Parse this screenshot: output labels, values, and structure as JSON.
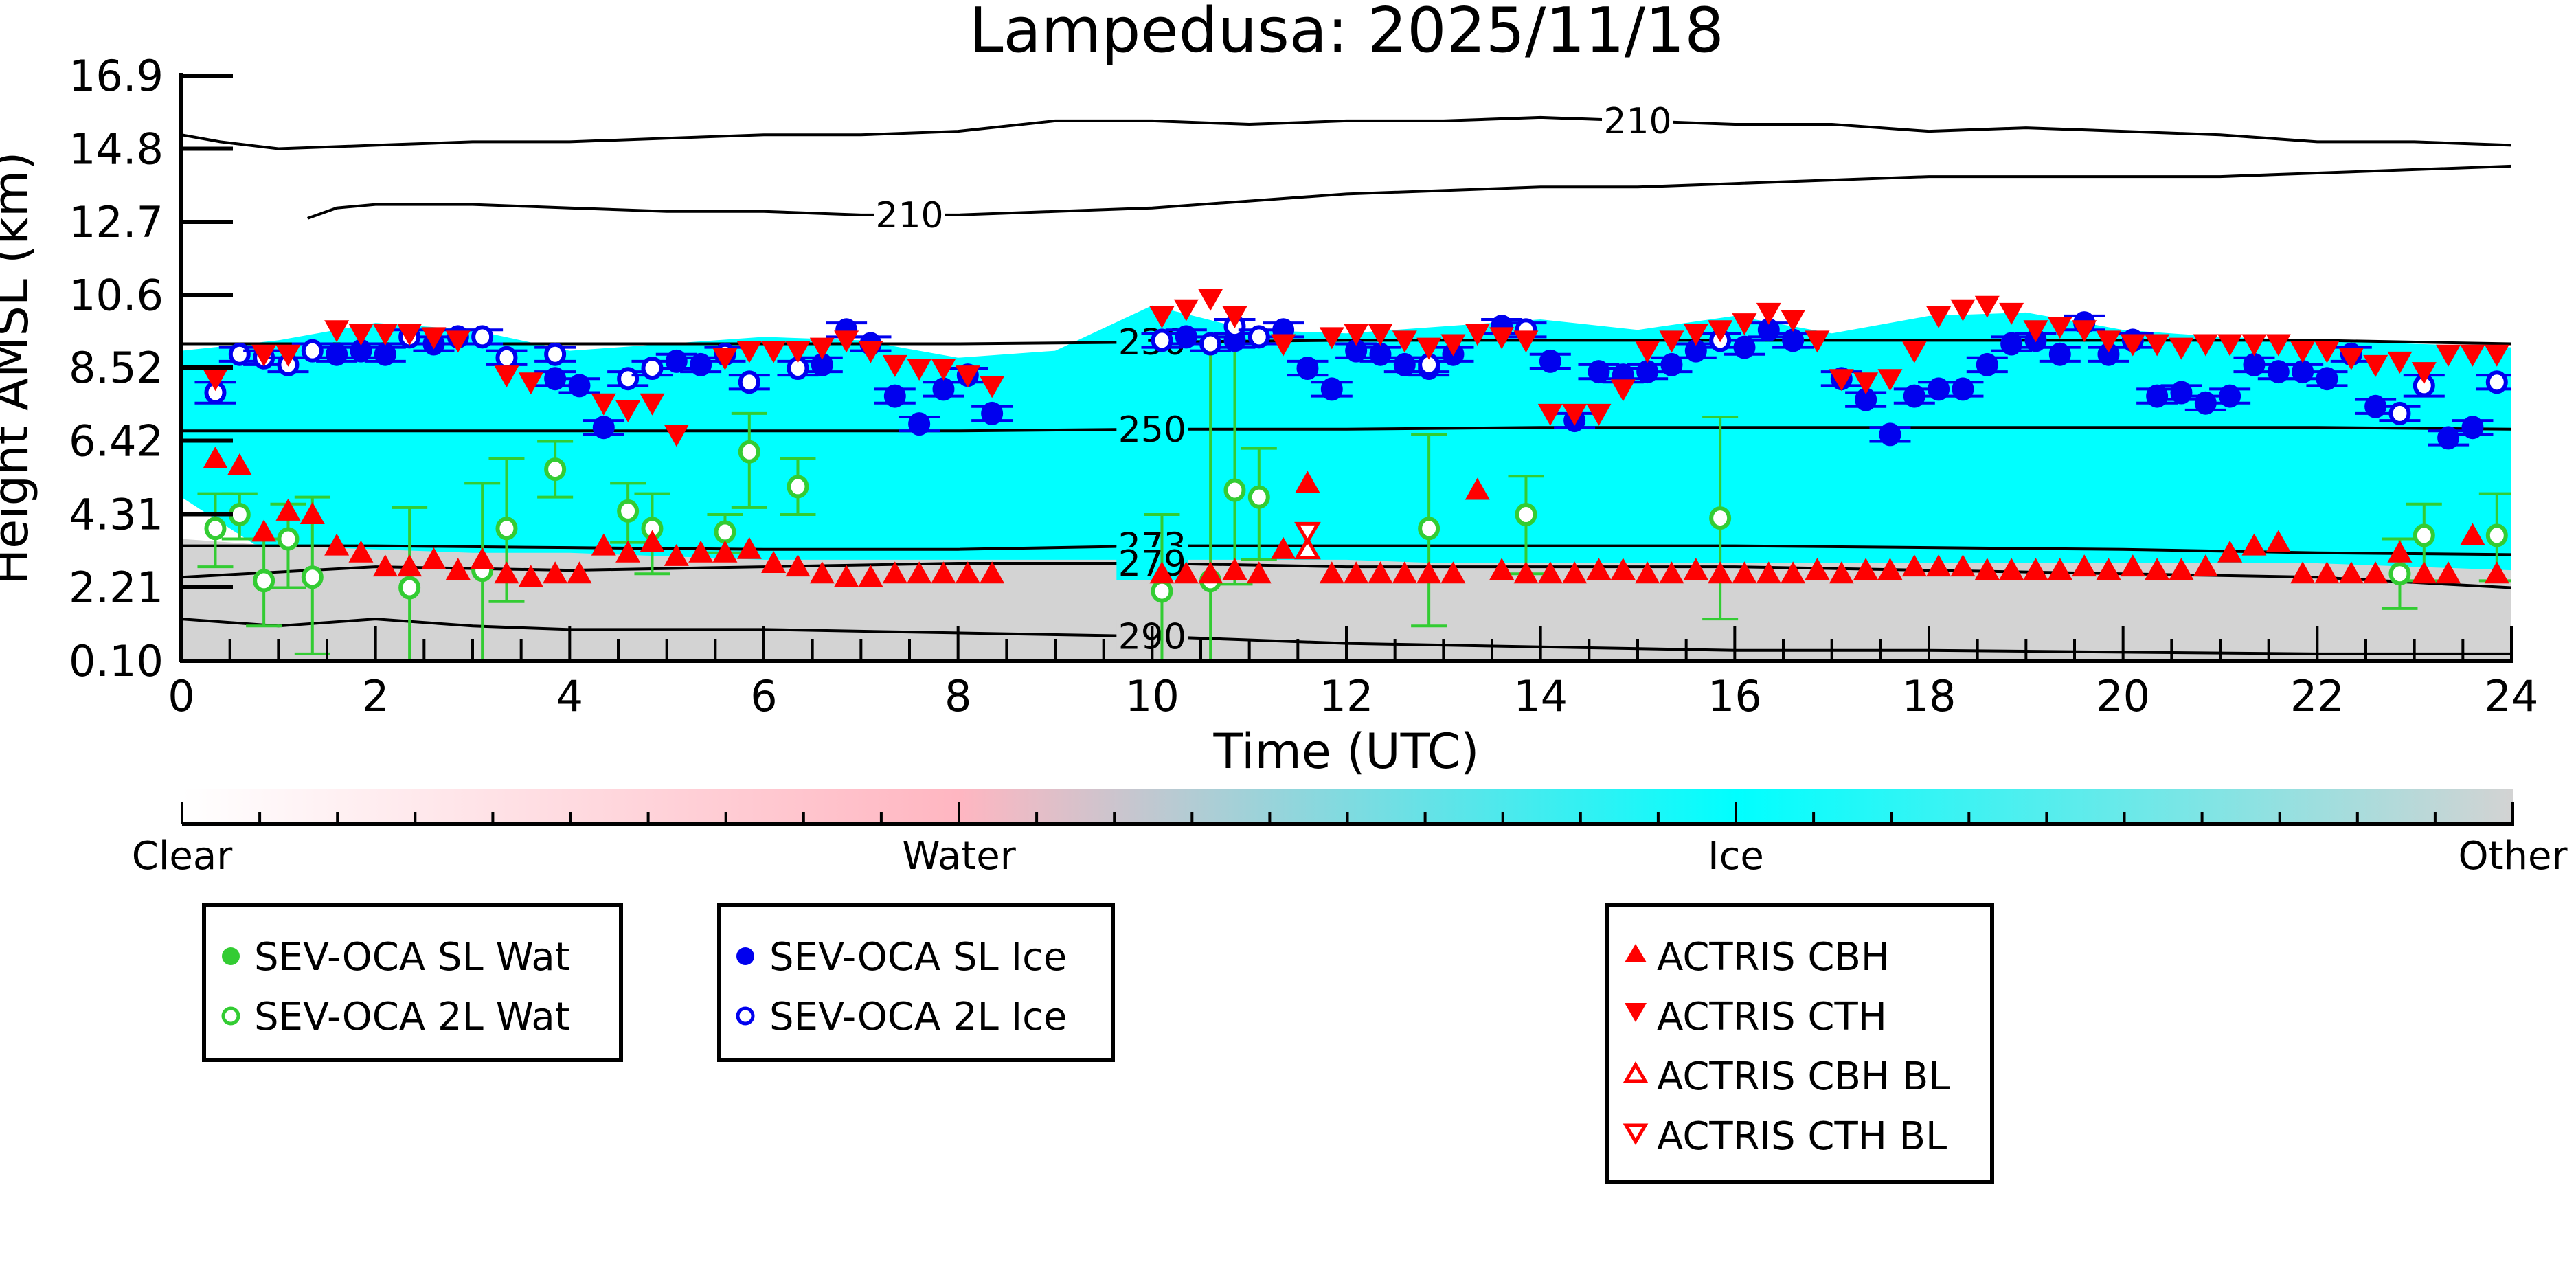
{
  "chart_data": {
    "type": "scatter",
    "title": "Lampedusa: 2025/11/18",
    "xlabel": "Time (UTC)",
    "ylabel": "Height AMSL (km)",
    "xlim": [
      0,
      24
    ],
    "ylim": [
      0.1,
      16.9
    ],
    "x_ticks": [
      0,
      2,
      4,
      6,
      8,
      10,
      12,
      14,
      16,
      18,
      20,
      22,
      24
    ],
    "x_tick_labels": [
      "0",
      "2",
      "4",
      "6",
      "8",
      "10",
      "12",
      "14",
      "16",
      "18",
      "20",
      "22",
      "24"
    ],
    "y_ticks": [
      0.1,
      2.21,
      4.31,
      6.42,
      8.52,
      10.6,
      12.7,
      14.8,
      16.9
    ],
    "y_tick_labels": [
      "0.10",
      "2.21",
      "4.31",
      "6.42",
      "8.52",
      "10.6",
      "12.7",
      "14.8",
      "16.9"
    ],
    "colors": {
      "clear": "#ffffff",
      "water": "#ffb6c1",
      "ice": "#00ffff",
      "other": "#d3d3d3",
      "sev_wat": "#33cc33",
      "sev_ice": "#0000ee",
      "actris": "#ff0000"
    },
    "background_layers": {
      "other_top_km": [
        3.6,
        3.4,
        3.3,
        3.2,
        3.2,
        3.1,
        3.0,
        3.0,
        3.0,
        3.0,
        3.0,
        3.0,
        3.0,
        2.9,
        2.9,
        2.9,
        2.9,
        2.9,
        2.9,
        2.9,
        2.9,
        2.9,
        2.9,
        2.8,
        2.7
      ],
      "ice_base_km": [
        4.8,
        3.0,
        2.6,
        2.6,
        2.5,
        2.5,
        2.5,
        2.5,
        2.5,
        2.6,
        2.6,
        2.6,
        2.6,
        2.6,
        2.6,
        2.6,
        2.6,
        2.6,
        2.6,
        2.6,
        2.6,
        2.6,
        2.6,
        2.6,
        2.6
      ],
      "ice_top_km": [
        9.0,
        9.3,
        9.8,
        9.6,
        9.0,
        9.2,
        9.4,
        9.3,
        8.8,
        9.0,
        10.3,
        9.6,
        9.5,
        9.7,
        9.9,
        9.6,
        10.0,
        9.5,
        10.0,
        10.1,
        9.6,
        9.4,
        9.3,
        9.2,
        9.1
      ]
    },
    "contours": [
      {
        "label": "210",
        "x": [
          0,
          0.4,
          1,
          2,
          3,
          4,
          5,
          6,
          7,
          8,
          9,
          10,
          11,
          12,
          13,
          14,
          15,
          16,
          17,
          18,
          19,
          20,
          21,
          22,
          23,
          24
        ],
        "y": [
          15.2,
          15.0,
          14.8,
          14.9,
          15.0,
          15.0,
          15.1,
          15.2,
          15.2,
          15.3,
          15.6,
          15.6,
          15.5,
          15.6,
          15.6,
          15.7,
          15.6,
          15.5,
          15.5,
          15.3,
          15.4,
          15.3,
          15.2,
          15.0,
          15.0,
          14.9
        ]
      },
      {
        "label": "210",
        "x": [
          1.3,
          1.6,
          2,
          3,
          4,
          5,
          6,
          7,
          8,
          9,
          10,
          11,
          12,
          13,
          14,
          15,
          16,
          17,
          18,
          19,
          20,
          21,
          22,
          23,
          24
        ],
        "y": [
          12.8,
          13.1,
          13.2,
          13.2,
          13.1,
          13.0,
          13.0,
          12.9,
          12.9,
          13.0,
          13.1,
          13.3,
          13.5,
          13.6,
          13.7,
          13.7,
          13.8,
          13.9,
          14.0,
          14.0,
          14.0,
          14.0,
          14.1,
          14.2,
          14.3
        ]
      },
      {
        "label": "230",
        "x": [
          0,
          2,
          4,
          6,
          8,
          10,
          12,
          14,
          16,
          18,
          20,
          22,
          24
        ],
        "y": [
          9.2,
          9.2,
          9.2,
          9.2,
          9.2,
          9.25,
          9.3,
          9.3,
          9.3,
          9.3,
          9.3,
          9.3,
          9.2
        ]
      },
      {
        "label": "250",
        "x": [
          0,
          2,
          4,
          6,
          8,
          10,
          12,
          14,
          16,
          18,
          20,
          22,
          24
        ],
        "y": [
          6.7,
          6.7,
          6.7,
          6.7,
          6.7,
          6.75,
          6.75,
          6.8,
          6.8,
          6.8,
          6.8,
          6.8,
          6.75
        ]
      },
      {
        "label": "273",
        "x": [
          0,
          2,
          4,
          6,
          8,
          10,
          12,
          14,
          16,
          18,
          20,
          22,
          24
        ],
        "y": [
          3.4,
          3.4,
          3.35,
          3.3,
          3.3,
          3.4,
          3.4,
          3.4,
          3.4,
          3.35,
          3.3,
          3.2,
          3.15
        ]
      },
      {
        "label": "279",
        "x": [
          0,
          2,
          4,
          6,
          8,
          10,
          12,
          14,
          16,
          18,
          20,
          22,
          24
        ],
        "y": [
          2.5,
          2.8,
          2.7,
          2.8,
          2.9,
          2.9,
          2.8,
          2.8,
          2.8,
          2.7,
          2.6,
          2.5,
          2.2
        ]
      },
      {
        "label": "290",
        "x": [
          0,
          1,
          2,
          3,
          4,
          6,
          8,
          10,
          12,
          14,
          16,
          18,
          20,
          22,
          24
        ],
        "y": [
          1.3,
          1.1,
          1.3,
          1.1,
          1.0,
          1.0,
          0.9,
          0.8,
          0.6,
          0.5,
          0.4,
          0.4,
          0.35,
          0.3,
          0.3
        ]
      }
    ],
    "colorbar": {
      "labels": [
        "Clear",
        "Water",
        "Ice",
        "Other"
      ]
    },
    "series": [
      {
        "name": "SEV-OCA SL Wat",
        "marker": "circle-filled",
        "x": [],
        "y": []
      },
      {
        "name": "SEV-OCA 2L Wat",
        "marker": "circle-open",
        "x": [
          0.35,
          0.6,
          0.85,
          1.1,
          1.35,
          2.35,
          3.1,
          3.35,
          3.85,
          4.6,
          4.85,
          5.6,
          5.85,
          6.35,
          10.1,
          10.6,
          10.85,
          11.1,
          12.85,
          13.85,
          15.85,
          22.85,
          23.1,
          23.85
        ],
        "y": [
          3.9,
          4.3,
          2.4,
          3.6,
          2.5,
          2.2,
          2.7,
          3.9,
          5.6,
          4.4,
          3.9,
          3.8,
          6.1,
          5.1,
          2.1,
          2.4,
          5.0,
          4.8,
          3.9,
          4.3,
          4.2,
          2.6,
          3.7,
          3.7
        ],
        "err_lo": [
          1.1,
          0.7,
          1.3,
          1.4,
          2.2,
          2.2,
          2.7,
          2.1,
          0.8,
          0.9,
          1.3,
          0.6,
          1.6,
          0.8,
          2.1,
          2.4,
          2.7,
          1.8,
          2.8,
          1.7,
          2.9,
          1.0,
          1.3,
          1.3
        ],
        "err_hi": [
          1.0,
          0.6,
          1.2,
          1.0,
          2.3,
          2.3,
          2.5,
          2.0,
          0.8,
          0.8,
          1.0,
          0.5,
          1.1,
          0.8,
          2.2,
          7.0,
          4.5,
          1.4,
          2.7,
          1.1,
          2.9,
          1.0,
          0.9,
          1.2
        ]
      },
      {
        "name": "SEV-OCA SL Ice",
        "marker": "circle-filled",
        "x": [
          1.6,
          1.85,
          2.1,
          2.6,
          2.85,
          4.35,
          4.1,
          3.85,
          5.1,
          5.35,
          6.6,
          6.85,
          7.1,
          7.35,
          7.6,
          7.85,
          8.1,
          8.35,
          10.35,
          10.85,
          11.35,
          11.6,
          11.85,
          12.1,
          12.35,
          12.6,
          12.85,
          13.1,
          13.6,
          14.1,
          14.35,
          14.6,
          14.85,
          15.1,
          15.35,
          15.6,
          16.1,
          16.35,
          16.6,
          17.1,
          17.35,
          17.6,
          17.85,
          18.1,
          18.35,
          18.6,
          18.85,
          19.1,
          19.35,
          19.6,
          19.85,
          20.1,
          20.35,
          20.6,
          20.85,
          21.1,
          21.35,
          21.6,
          21.85,
          22.1,
          22.35,
          22.6,
          23.35,
          23.6
        ],
        "y": [
          8.9,
          9.0,
          8.9,
          9.2,
          9.4,
          6.8,
          8.0,
          8.2,
          8.7,
          8.6,
          8.6,
          9.6,
          9.2,
          7.7,
          6.9,
          7.9,
          8.3,
          7.2,
          9.4,
          9.3,
          9.6,
          8.5,
          7.9,
          9.0,
          8.9,
          8.6,
          8.5,
          8.9,
          9.7,
          8.7,
          7.0,
          8.4,
          8.3,
          8.4,
          8.6,
          9.0,
          9.1,
          9.6,
          9.3,
          8.2,
          7.6,
          6.6,
          7.7,
          7.9,
          7.9,
          8.6,
          9.2,
          9.3,
          8.9,
          9.8,
          8.9,
          9.3,
          7.7,
          7.8,
          7.5,
          7.7,
          8.6,
          8.4,
          8.4,
          8.2,
          8.9,
          7.4,
          6.5,
          6.8
        ],
        "err": [
          0.2,
          0.2,
          0.2,
          0.2,
          0.2,
          0.2,
          0.2,
          0.2,
          0.2,
          0.2,
          0.2,
          0.2,
          0.2,
          0.2,
          0.2,
          0.2,
          0.2,
          0.2,
          0.2,
          0.2,
          0.2,
          0.2,
          0.2,
          0.2,
          0.2,
          0.2,
          0.2,
          0.2,
          0.2,
          0.2,
          0.2,
          0.2,
          0.2,
          0.2,
          0.2,
          0.2,
          0.2,
          0.2,
          0.2,
          0.2,
          0.2,
          0.2,
          0.2,
          0.2,
          0.2,
          0.2,
          0.2,
          0.2,
          0.2,
          0.2,
          0.2,
          0.2,
          0.2,
          0.2,
          0.2,
          0.2,
          0.2,
          0.2,
          0.2,
          0.2,
          0.2,
          0.2,
          0.2,
          0.2
        ]
      },
      {
        "name": "SEV-OCA 2L Ice",
        "marker": "circle-open",
        "x": [
          0.35,
          0.6,
          0.85,
          1.1,
          1.35,
          2.35,
          3.1,
          3.35,
          3.85,
          4.6,
          4.85,
          5.6,
          5.85,
          6.35,
          10.1,
          10.6,
          10.85,
          11.1,
          12.85,
          13.85,
          15.85,
          22.85,
          23.1,
          23.85
        ],
        "y": [
          7.8,
          8.9,
          8.8,
          8.6,
          9.0,
          9.4,
          9.4,
          8.8,
          8.9,
          8.2,
          8.5,
          8.9,
          8.1,
          8.5,
          9.3,
          9.2,
          9.7,
          9.4,
          8.6,
          9.6,
          9.3,
          7.2,
          8.0,
          8.1
        ],
        "err": [
          0.3,
          0.2,
          0.2,
          0.2,
          0.2,
          0.2,
          0.2,
          0.2,
          0.2,
          0.2,
          0.2,
          0.2,
          0.2,
          0.2,
          0.2,
          0.2,
          0.2,
          0.2,
          0.2,
          0.2,
          0.2,
          0.2,
          0.3,
          0.2
        ]
      },
      {
        "name": "ACTRIS CBH",
        "marker": "triangle-up-filled",
        "x": [
          0.35,
          0.6,
          0.85,
          1.1,
          1.35,
          1.6,
          1.85,
          2.1,
          2.35,
          2.6,
          2.85,
          3.1,
          3.35,
          3.6,
          3.85,
          4.1,
          4.35,
          4.6,
          4.85,
          5.1,
          5.35,
          5.6,
          5.85,
          6.1,
          6.35,
          6.6,
          6.85,
          7.1,
          7.35,
          7.6,
          7.85,
          8.1,
          8.35,
          10.1,
          10.35,
          10.6,
          10.85,
          11.1,
          11.35,
          11.6,
          11.85,
          12.1,
          12.35,
          12.6,
          12.85,
          13.1,
          13.35,
          13.6,
          13.85,
          14.1,
          14.35,
          14.6,
          14.85,
          15.1,
          15.35,
          15.6,
          15.85,
          16.1,
          16.35,
          16.6,
          16.85,
          17.1,
          17.35,
          17.6,
          17.85,
          18.1,
          18.35,
          18.6,
          18.85,
          19.1,
          19.35,
          19.6,
          19.85,
          20.1,
          20.35,
          20.6,
          20.85,
          21.1,
          21.35,
          21.6,
          21.85,
          22.1,
          22.35,
          22.6,
          22.85,
          23.1,
          23.35,
          23.6,
          23.85
        ],
        "y": [
          5.9,
          5.7,
          3.8,
          4.4,
          4.3,
          3.4,
          3.2,
          2.8,
          2.8,
          3.0,
          2.7,
          3.0,
          2.6,
          2.5,
          2.6,
          2.6,
          3.4,
          3.2,
          3.5,
          3.1,
          3.2,
          3.2,
          3.3,
          2.9,
          2.8,
          2.6,
          2.5,
          2.5,
          2.6,
          2.6,
          2.6,
          2.6,
          2.6,
          2.6,
          2.6,
          2.6,
          2.7,
          2.6,
          3.3,
          5.2,
          2.6,
          2.6,
          2.6,
          2.6,
          2.6,
          2.6,
          5.0,
          2.7,
          2.6,
          2.6,
          2.6,
          2.7,
          2.7,
          2.6,
          2.6,
          2.7,
          2.6,
          2.6,
          2.6,
          2.6,
          2.7,
          2.6,
          2.7,
          2.7,
          2.8,
          2.8,
          2.8,
          2.7,
          2.7,
          2.7,
          2.7,
          2.8,
          2.7,
          2.8,
          2.7,
          2.7,
          2.8,
          3.2,
          3.4,
          3.5,
          2.6,
          2.6,
          2.6,
          2.6,
          3.2,
          2.6,
          2.6,
          3.7,
          2.6
        ]
      },
      {
        "name": "ACTRIS CTH",
        "marker": "triangle-down-filled",
        "x": [
          0.35,
          0.85,
          1.1,
          1.6,
          1.85,
          2.1,
          2.35,
          2.6,
          2.85,
          3.35,
          3.6,
          4.35,
          4.6,
          4.85,
          5.1,
          5.6,
          5.85,
          6.1,
          6.35,
          6.6,
          6.85,
          7.1,
          7.35,
          7.6,
          7.85,
          8.1,
          8.35,
          10.1,
          10.35,
          10.6,
          10.85,
          11.35,
          11.85,
          12.1,
          12.35,
          12.6,
          12.85,
          13.1,
          13.35,
          13.6,
          13.85,
          14.1,
          14.35,
          14.6,
          14.85,
          15.1,
          15.35,
          15.6,
          15.85,
          16.1,
          16.35,
          16.6,
          16.85,
          17.1,
          17.35,
          17.6,
          17.85,
          18.1,
          18.35,
          18.6,
          18.85,
          19.1,
          19.35,
          19.6,
          19.85,
          20.1,
          20.35,
          20.6,
          20.85,
          21.1,
          21.35,
          21.6,
          21.85,
          22.1,
          22.35,
          22.6,
          22.85,
          23.1,
          23.35,
          23.6,
          23.85
        ],
        "y": [
          8.2,
          8.9,
          8.9,
          9.6,
          9.5,
          9.5,
          9.5,
          9.4,
          9.3,
          8.3,
          8.1,
          7.5,
          7.3,
          7.5,
          6.6,
          8.8,
          9.0,
          9.0,
          9.0,
          9.1,
          9.3,
          9.0,
          8.6,
          8.5,
          8.5,
          8.3,
          8.0,
          10.0,
          10.2,
          10.5,
          10.0,
          9.2,
          9.4,
          9.5,
          9.5,
          9.3,
          9.1,
          9.2,
          9.5,
          9.4,
          9.3,
          7.2,
          7.2,
          7.2,
          7.9,
          9.0,
          9.3,
          9.5,
          9.6,
          9.8,
          10.1,
          9.9,
          9.3,
          8.2,
          8.1,
          8.2,
          9.0,
          10.0,
          10.2,
          10.3,
          10.1,
          9.6,
          9.7,
          9.6,
          9.3,
          9.2,
          9.2,
          9.1,
          9.2,
          9.2,
          9.2,
          9.2,
          9.0,
          9.0,
          8.8,
          8.6,
          8.7,
          8.4,
          8.9,
          8.9,
          8.9
        ]
      },
      {
        "name": "ACTRIS CBH BL",
        "marker": "triangle-up-open",
        "x": [
          11.6
        ],
        "y": [
          3.3
        ]
      },
      {
        "name": "ACTRIS CTH BL",
        "marker": "triangle-down-open",
        "x": [
          11.6
        ],
        "y": [
          3.8
        ]
      }
    ],
    "legends": [
      {
        "entries": [
          "SEV-OCA SL Wat",
          "SEV-OCA 2L Wat"
        ]
      },
      {
        "entries": [
          "SEV-OCA SL Ice",
          "SEV-OCA 2L Ice"
        ]
      },
      {
        "entries": [
          "ACTRIS CBH",
          "ACTRIS CTH",
          "ACTRIS CBH BL",
          "ACTRIS CTH BL"
        ]
      }
    ],
    "grid": false
  }
}
